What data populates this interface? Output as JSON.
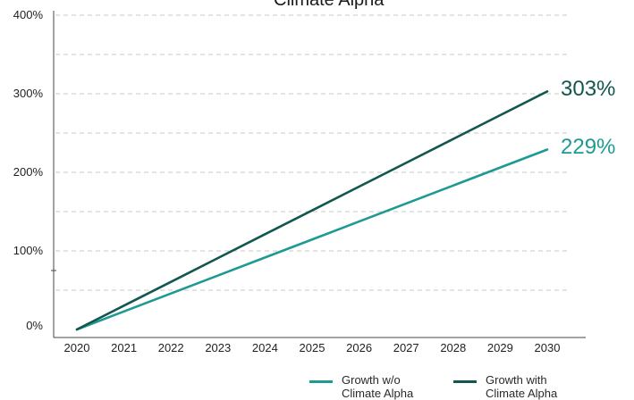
{
  "chart_data": {
    "type": "line",
    "title": "Climate Alpha",
    "x": [
      2020,
      2021,
      2022,
      2023,
      2024,
      2025,
      2026,
      2027,
      2028,
      2029,
      2030
    ],
    "series": [
      {
        "name": "Growth w/o Climate Alpha",
        "legend_lines": [
          "Growth w/o",
          "Climate Alpha"
        ],
        "color": "#1e9a93",
        "values": [
          0,
          22.9,
          45.8,
          68.7,
          91.6,
          114.5,
          137.4,
          160.3,
          183.2,
          206.1,
          229
        ],
        "end_label": "229%"
      },
      {
        "name": "Growth with Climate Alpha",
        "legend_lines": [
          "Growth with",
          "Climate Alpha"
        ],
        "color": "#12574f",
        "values": [
          0,
          30.3,
          60.6,
          90.9,
          121.2,
          151.5,
          181.8,
          212.1,
          242.4,
          272.7,
          303
        ],
        "end_label": "303%"
      }
    ],
    "y_ticks": [
      "0%",
      "100%",
      "200%",
      "300%",
      "400%"
    ],
    "x_ticks": [
      "2020",
      "2021",
      "2022",
      "2023",
      "2024",
      "2025",
      "2026",
      "2027",
      "2028",
      "2029",
      "2030"
    ],
    "ylim": [
      0,
      400
    ],
    "grid": "horizontal dashed every 50%",
    "legend_position": "bottom-right"
  }
}
